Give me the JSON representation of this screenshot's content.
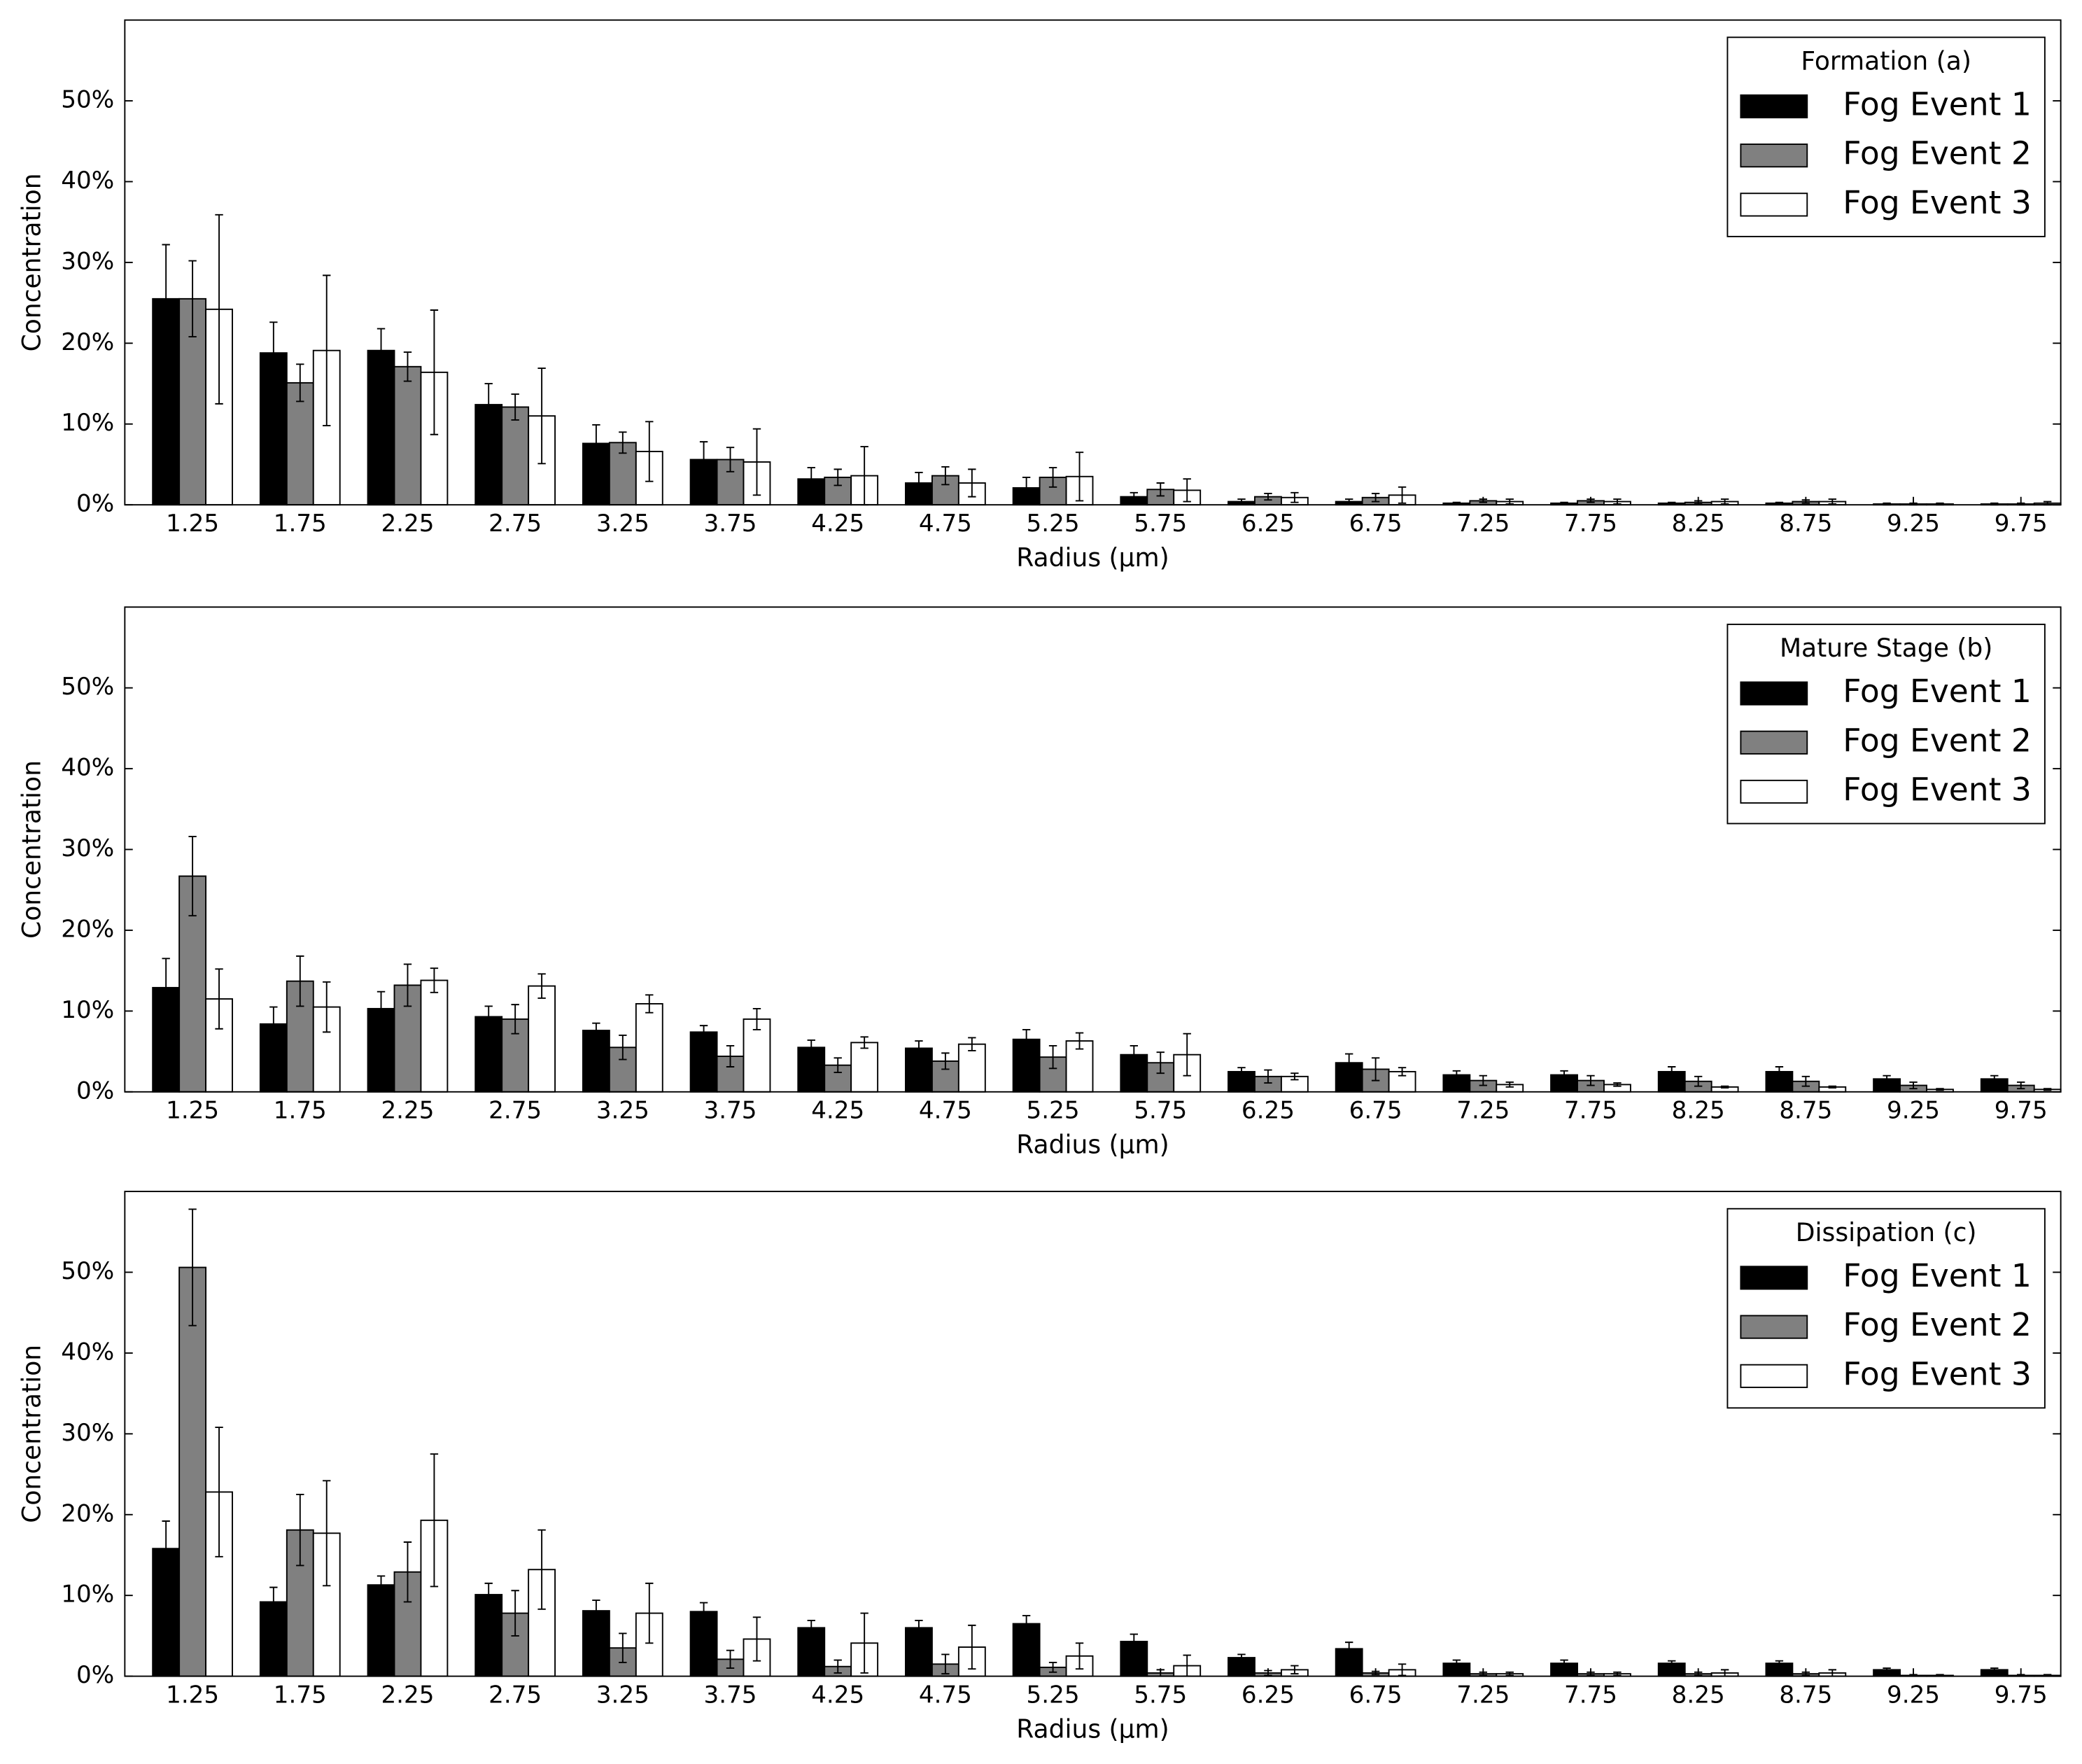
{
  "chart_data": [
    {
      "type": "bar",
      "x_label": "Radius (μm)",
      "y_label": "Concentration",
      "legend_title": "Formation (a)",
      "legend": "upper right",
      "grid": false,
      "categories": [
        "1.25",
        "1.75",
        "2.25",
        "2.75",
        "3.25",
        "3.75",
        "4.25",
        "4.75",
        "5.25",
        "5.75",
        "6.25",
        "6.75",
        "7.25",
        "7.75",
        "8.25",
        "8.75",
        "9.25",
        "9.75"
      ],
      "series": [
        {
          "name": "Fog Event 1",
          "color": "#000000",
          "values": [
            25.5,
            18.8,
            19.1,
            12.4,
            7.6,
            5.6,
            3.2,
            2.7,
            2.1,
            1.0,
            0.4,
            0.4,
            0.2,
            0.2,
            0.2,
            0.2,
            0.1,
            0.1
          ],
          "errors": [
            6.7,
            3.8,
            2.7,
            2.6,
            2.3,
            2.2,
            1.4,
            1.3,
            1.3,
            0.5,
            0.3,
            0.3,
            0.1,
            0.1,
            0.1,
            0.1,
            0.1,
            0.1
          ]
        },
        {
          "name": "Fog Event 2",
          "color": "#808080",
          "values": [
            25.5,
            15.1,
            17.1,
            12.1,
            7.7,
            5.6,
            3.4,
            3.6,
            3.4,
            1.9,
            1.0,
            0.9,
            0.5,
            0.5,
            0.3,
            0.4,
            0.1,
            0.1
          ],
          "errors": [
            4.7,
            2.3,
            1.8,
            1.6,
            1.3,
            1.5,
            1.0,
            1.1,
            1.2,
            0.8,
            0.4,
            0.5,
            0.2,
            0.2,
            0.2,
            0.2,
            0.1,
            0.1
          ]
        },
        {
          "name": "Fog Event 3",
          "color": "#ffffff",
          "values": [
            24.2,
            19.1,
            16.4,
            11.0,
            6.6,
            5.3,
            3.6,
            2.7,
            3.5,
            1.8,
            0.9,
            1.2,
            0.4,
            0.4,
            0.4,
            0.4,
            0.1,
            0.2
          ],
          "errors": [
            11.7,
            9.3,
            7.7,
            5.9,
            3.7,
            4.1,
            3.6,
            1.7,
            3.0,
            1.4,
            0.6,
            1.0,
            0.3,
            0.3,
            0.3,
            0.3,
            0.1,
            0.2
          ]
        }
      ],
      "ylim": [
        0,
        60
      ],
      "yticks": [
        {
          "value": 0,
          "label": "0%"
        },
        {
          "value": 10,
          "label": "10%"
        },
        {
          "value": 20,
          "label": "20%"
        },
        {
          "value": 30,
          "label": "30%"
        },
        {
          "value": 40,
          "label": "40%"
        },
        {
          "value": 50,
          "label": "50%"
        }
      ]
    },
    {
      "type": "bar",
      "x_label": "Radius (μm)",
      "y_label": "Concentration",
      "legend_title": "Mature Stage (b)",
      "legend": "upper right",
      "grid": false,
      "categories": [
        "1.25",
        "1.75",
        "2.25",
        "2.75",
        "3.25",
        "3.75",
        "4.25",
        "4.75",
        "5.25",
        "5.75",
        "6.25",
        "6.75",
        "7.25",
        "7.75",
        "8.25",
        "8.75",
        "9.25",
        "9.75"
      ],
      "series": [
        {
          "name": "Fog Event 1",
          "color": "#000000",
          "values": [
            12.9,
            8.4,
            10.3,
            9.3,
            7.6,
            7.4,
            5.5,
            5.4,
            6.5,
            4.6,
            2.5,
            3.6,
            2.1,
            2.1,
            2.5,
            2.5,
            1.6,
            1.6
          ],
          "errors": [
            3.6,
            2.1,
            2.1,
            1.3,
            0.9,
            0.8,
            0.9,
            0.9,
            1.2,
            1.1,
            0.5,
            1.1,
            0.5,
            0.5,
            0.6,
            0.6,
            0.4,
            0.4
          ]
        },
        {
          "name": "Fog Event 2",
          "color": "#808080",
          "values": [
            26.7,
            13.7,
            13.2,
            9.0,
            5.5,
            4.4,
            3.3,
            3.8,
            4.3,
            3.6,
            1.9,
            2.8,
            1.4,
            1.4,
            1.3,
            1.3,
            0.8,
            0.8
          ],
          "errors": [
            4.9,
            3.1,
            2.6,
            1.8,
            1.5,
            1.3,
            0.9,
            1.0,
            1.4,
            1.3,
            0.8,
            1.4,
            0.6,
            0.6,
            0.6,
            0.6,
            0.4,
            0.4
          ]
        },
        {
          "name": "Fog Event 3",
          "color": "#ffffff",
          "values": [
            11.5,
            10.5,
            13.8,
            13.1,
            10.9,
            9.0,
            6.1,
            5.9,
            6.3,
            4.6,
            1.9,
            2.5,
            0.9,
            0.9,
            0.6,
            0.6,
            0.3,
            0.3
          ],
          "errors": [
            3.7,
            3.1,
            1.5,
            1.5,
            1.1,
            1.3,
            0.7,
            0.8,
            1.0,
            2.6,
            0.4,
            0.5,
            0.3,
            0.2,
            0.1,
            0.1,
            0.1,
            0.1
          ]
        }
      ],
      "ylim": [
        0,
        60
      ],
      "yticks": [
        {
          "value": 0,
          "label": "0%"
        },
        {
          "value": 10,
          "label": "10%"
        },
        {
          "value": 20,
          "label": "20%"
        },
        {
          "value": 30,
          "label": "30%"
        },
        {
          "value": 40,
          "label": "40%"
        },
        {
          "value": 50,
          "label": "50%"
        }
      ]
    },
    {
      "type": "bar",
      "x_label": "Radius (μm)",
      "y_label": "Concentration",
      "legend_title": "Dissipation (c)",
      "legend": "upper right",
      "grid": false,
      "categories": [
        "1.25",
        "1.75",
        "2.25",
        "2.75",
        "3.25",
        "3.75",
        "4.25",
        "4.75",
        "5.25",
        "5.75",
        "6.25",
        "6.75",
        "7.25",
        "7.75",
        "8.25",
        "8.75",
        "9.25",
        "9.75"
      ],
      "series": [
        {
          "name": "Fog Event 1",
          "color": "#000000",
          "values": [
            15.8,
            9.2,
            11.3,
            10.1,
            8.1,
            8.0,
            6.0,
            6.0,
            6.5,
            4.3,
            2.3,
            3.4,
            1.6,
            1.6,
            1.6,
            1.6,
            0.8,
            0.8
          ],
          "errors": [
            3.4,
            1.8,
            1.1,
            1.4,
            1.3,
            1.1,
            0.9,
            0.9,
            1.0,
            0.9,
            0.4,
            0.8,
            0.4,
            0.4,
            0.3,
            0.3,
            0.2,
            0.2
          ]
        },
        {
          "name": "Fog Event 2",
          "color": "#808080",
          "values": [
            50.6,
            18.1,
            12.9,
            7.8,
            3.5,
            2.1,
            1.2,
            1.5,
            1.1,
            0.4,
            0.4,
            0.4,
            0.3,
            0.3,
            0.3,
            0.3,
            0.1,
            0.1
          ],
          "errors": [
            7.2,
            4.4,
            3.7,
            2.8,
            1.8,
            1.1,
            0.8,
            1.2,
            0.6,
            0.4,
            0.3,
            0.2,
            0.2,
            0.2,
            0.2,
            0.2,
            0.1,
            0.1
          ]
        },
        {
          "name": "Fog Event 3",
          "color": "#ffffff",
          "values": [
            22.8,
            17.7,
            19.3,
            13.2,
            7.8,
            4.6,
            4.1,
            3.6,
            2.5,
            1.3,
            0.8,
            0.8,
            0.3,
            0.3,
            0.4,
            0.4,
            0.1,
            0.1
          ],
          "errors": [
            8.0,
            6.5,
            8.2,
            4.9,
            3.7,
            2.7,
            3.7,
            2.7,
            1.6,
            1.3,
            0.5,
            0.7,
            0.2,
            0.2,
            0.4,
            0.4,
            0.1,
            0.1
          ]
        }
      ],
      "ylim": [
        0,
        60
      ],
      "yticks": [
        {
          "value": 0,
          "label": "0%"
        },
        {
          "value": 10,
          "label": "10%"
        },
        {
          "value": 20,
          "label": "20%"
        },
        {
          "value": 30,
          "label": "30%"
        },
        {
          "value": 40,
          "label": "40%"
        },
        {
          "value": 50,
          "label": "50%"
        }
      ]
    }
  ]
}
